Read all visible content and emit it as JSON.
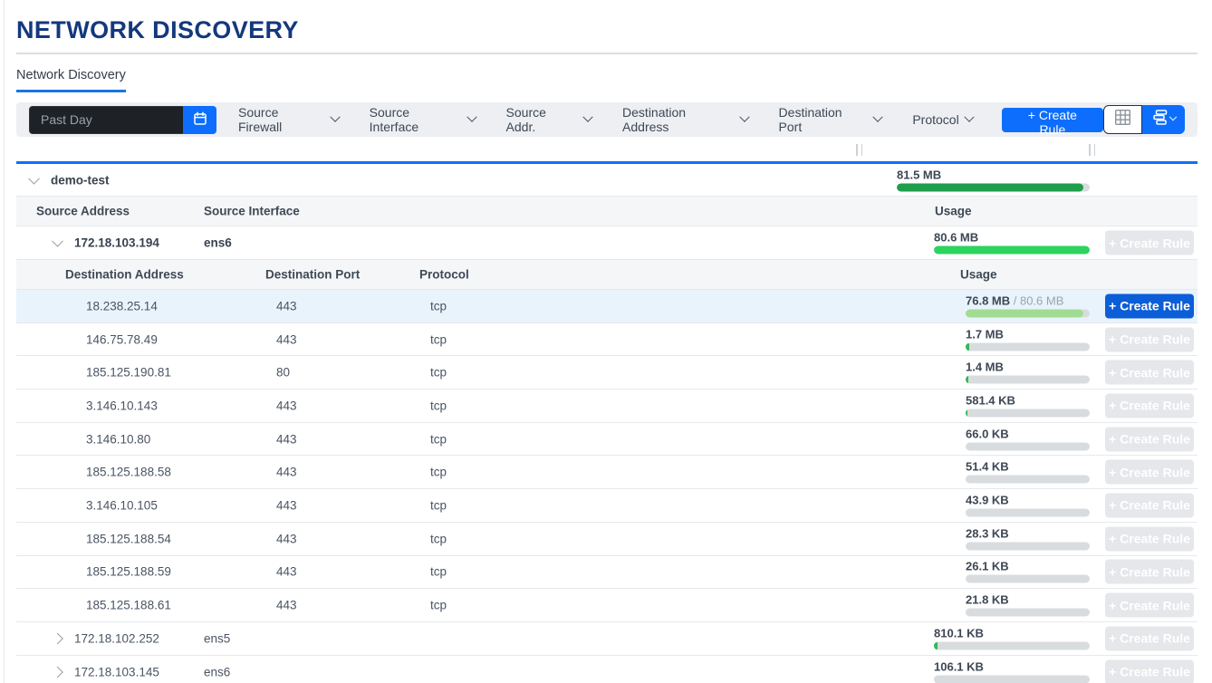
{
  "page": {
    "title": "NETWORK DISCOVERY"
  },
  "tab": {
    "label": "Network Discovery"
  },
  "toolbar": {
    "date_value": "Past Day",
    "filters": {
      "source_firewall": "Source Firewall",
      "source_interface": "Source Interface",
      "source_addr": "Source Addr.",
      "destination_address": "Destination Address",
      "destination_port": "Destination Port",
      "protocol": "Protocol"
    },
    "create_rule": "+ Create Rule"
  },
  "colors": {
    "accent_blue": "#0d6efd",
    "dark_green": "#1f9e4b",
    "bright_green": "#2dd35f",
    "light_green": "#a2dc92",
    "sliver_green": "#2fbb55",
    "bar_track": "#d9dcdf"
  },
  "table": {
    "create_rule_label": "+ Create Rule",
    "group": {
      "name": "demo-test",
      "usage": "81.5 MB",
      "pct": 96.5
    },
    "source_header": {
      "address": "Source Address",
      "interface": "Source Interface",
      "usage": "Usage"
    },
    "dest_header": {
      "address": "Destination Address",
      "port": "Destination Port",
      "protocol": "Protocol",
      "usage": "Usage"
    },
    "source": {
      "address": "172.18.103.194",
      "interface": "ens6",
      "usage": "80.6 MB",
      "pct": 100
    },
    "dest_rows": [
      {
        "address": "18.238.25.14",
        "port": "443",
        "protocol": "tcp",
        "usage": "76.8 MB",
        "usage_total": " / 80.6 MB",
        "pct": 95
      },
      {
        "address": "146.75.78.49",
        "port": "443",
        "protocol": "tcp",
        "usage": "1.7 MB",
        "pct": 3
      },
      {
        "address": "185.125.190.81",
        "port": "80",
        "protocol": "tcp",
        "usage": "1.4 MB",
        "pct": 2.5
      },
      {
        "address": "3.146.10.143",
        "port": "443",
        "protocol": "tcp",
        "usage": "581.4 KB",
        "pct": 1.2
      },
      {
        "address": "3.146.10.80",
        "port": "443",
        "protocol": "tcp",
        "usage": "66.0 KB",
        "pct": 0
      },
      {
        "address": "185.125.188.58",
        "port": "443",
        "protocol": "tcp",
        "usage": "51.4 KB",
        "pct": 0
      },
      {
        "address": "3.146.10.105",
        "port": "443",
        "protocol": "tcp",
        "usage": "43.9 KB",
        "pct": 0
      },
      {
        "address": "185.125.188.54",
        "port": "443",
        "protocol": "tcp",
        "usage": "28.3 KB",
        "pct": 0
      },
      {
        "address": "185.125.188.59",
        "port": "443",
        "protocol": "tcp",
        "usage": "26.1 KB",
        "pct": 0
      },
      {
        "address": "185.125.188.61",
        "port": "443",
        "protocol": "tcp",
        "usage": "21.8 KB",
        "pct": 0
      }
    ],
    "collapsed_sources": [
      {
        "address": "172.18.102.252",
        "interface": "ens5",
        "usage": "810.1 KB",
        "pct": 2.2
      },
      {
        "address": "172.18.103.145",
        "interface": "ens6",
        "usage": "106.1 KB",
        "pct": 0
      }
    ]
  }
}
